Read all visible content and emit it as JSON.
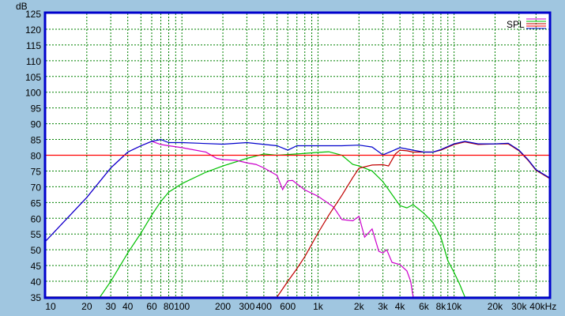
{
  "chart_data": {
    "type": "line",
    "title": "",
    "ylabel": "dB",
    "xunit": "kHz",
    "xscale": "log",
    "xlim": [
      10,
      50000
    ],
    "ylim": [
      35,
      125
    ],
    "grid": true,
    "legend_placement": "top-right",
    "legend_label": "SPL",
    "yticks": [
      35,
      40,
      45,
      50,
      55,
      60,
      65,
      70,
      75,
      80,
      85,
      90,
      95,
      100,
      105,
      110,
      115,
      120,
      125
    ],
    "xticks": [
      {
        "v": 10,
        "label": "10"
      },
      {
        "v": 20,
        "label": "20"
      },
      {
        "v": 30,
        "label": "30"
      },
      {
        "v": 40,
        "label": "40"
      },
      {
        "v": 60,
        "label": "60"
      },
      {
        "v": 80,
        "label": "80"
      },
      {
        "v": 100,
        "label": "100"
      },
      {
        "v": 200,
        "label": "200"
      },
      {
        "v": 300,
        "label": "300"
      },
      {
        "v": 400,
        "label": "400"
      },
      {
        "v": 600,
        "label": "600"
      },
      {
        "v": 1000,
        "label": "1k"
      },
      {
        "v": 2000,
        "label": "2k"
      },
      {
        "v": 3000,
        "label": "3k"
      },
      {
        "v": 4000,
        "label": "4k"
      },
      {
        "v": 6000,
        "label": "6k"
      },
      {
        "v": 8000,
        "label": "8k"
      },
      {
        "v": 10000,
        "label": "10k"
      },
      {
        "v": 20000,
        "label": "20k"
      },
      {
        "v": 30000,
        "label": "30k"
      },
      {
        "v": 40000,
        "label": "40kHz"
      }
    ],
    "reference_line": {
      "y": 80,
      "color": "#ff0000"
    },
    "colors": {
      "background": "#a0c6e0",
      "plot": "#ffffff",
      "border": "#0000cc",
      "grid": "#008000"
    },
    "series": [
      {
        "color": "#00c000",
        "points": [
          [
            10,
            35
          ],
          [
            25,
            35
          ],
          [
            30,
            40
          ],
          [
            40,
            49
          ],
          [
            50,
            55.3
          ],
          [
            60,
            61
          ],
          [
            70,
            65.3
          ],
          [
            80,
            68.3
          ],
          [
            100,
            71
          ],
          [
            150,
            74.6
          ],
          [
            200,
            76.6
          ],
          [
            300,
            79
          ],
          [
            400,
            80.4
          ],
          [
            500,
            80
          ],
          [
            700,
            80.4
          ],
          [
            1000,
            80.9
          ],
          [
            1200,
            81.1
          ],
          [
            1500,
            80
          ],
          [
            1800,
            77.1
          ],
          [
            2000,
            76.6
          ],
          [
            2500,
            75
          ],
          [
            3000,
            71.6
          ],
          [
            4000,
            64
          ],
          [
            4500,
            63.3
          ],
          [
            5000,
            64.3
          ],
          [
            6000,
            61.6
          ],
          [
            7000,
            58.6
          ],
          [
            8000,
            54
          ],
          [
            9000,
            46.5
          ],
          [
            10000,
            42.8
          ],
          [
            11000,
            39
          ],
          [
            12000,
            35
          ],
          [
            50000,
            35
          ]
        ]
      },
      {
        "color": "#cc00cc",
        "points": [
          [
            10,
            52.8
          ],
          [
            20,
            66.6
          ],
          [
            30,
            76
          ],
          [
            40,
            81
          ],
          [
            50,
            83
          ],
          [
            60,
            84.4
          ],
          [
            70,
            83.4
          ],
          [
            80,
            83
          ],
          [
            100,
            82.4
          ],
          [
            150,
            81
          ],
          [
            180,
            79
          ],
          [
            200,
            78.6
          ],
          [
            250,
            78.4
          ],
          [
            300,
            77.6
          ],
          [
            350,
            77.1
          ],
          [
            400,
            76
          ],
          [
            500,
            73.6
          ],
          [
            550,
            69.1
          ],
          [
            600,
            71.9
          ],
          [
            650,
            72
          ],
          [
            800,
            69
          ],
          [
            1000,
            67
          ],
          [
            1300,
            63.6
          ],
          [
            1500,
            59.6
          ],
          [
            1800,
            59.2
          ],
          [
            2000,
            60.6
          ],
          [
            2200,
            54
          ],
          [
            2500,
            56.6
          ],
          [
            2800,
            49.5
          ],
          [
            3000,
            49
          ],
          [
            3200,
            50
          ],
          [
            3500,
            46
          ],
          [
            4000,
            45.3
          ],
          [
            4500,
            43.3
          ],
          [
            4800,
            40
          ],
          [
            5000,
            35
          ],
          [
            10500,
            35
          ]
        ]
      },
      {
        "color": "#c00000",
        "points": [
          [
            10,
            35
          ],
          [
            500,
            35
          ],
          [
            600,
            40
          ],
          [
            700,
            44
          ],
          [
            800,
            47.8
          ],
          [
            1000,
            55.3
          ],
          [
            1200,
            61
          ],
          [
            1500,
            67.3
          ],
          [
            1800,
            72.9
          ],
          [
            2000,
            75.9
          ],
          [
            2500,
            76.9
          ],
          [
            3000,
            77
          ],
          [
            3300,
            76.6
          ],
          [
            3700,
            80.4
          ],
          [
            4000,
            81.6
          ],
          [
            4500,
            81.4
          ],
          [
            5000,
            81
          ],
          [
            6000,
            81
          ],
          [
            7000,
            81
          ],
          [
            8000,
            81.6
          ],
          [
            10000,
            83.4
          ],
          [
            12000,
            84.2
          ],
          [
            15000,
            83.4
          ],
          [
            20000,
            83.6
          ],
          [
            25000,
            83.6
          ],
          [
            30000,
            81.4
          ],
          [
            35000,
            78.4
          ],
          [
            40000,
            75.2
          ],
          [
            50000,
            72.7
          ]
        ]
      },
      {
        "color": "#0000cc",
        "points": [
          [
            10,
            52.8
          ],
          [
            20,
            66.6
          ],
          [
            30,
            76
          ],
          [
            40,
            81
          ],
          [
            50,
            83
          ],
          [
            60,
            84.4
          ],
          [
            70,
            85
          ],
          [
            80,
            84
          ],
          [
            100,
            84
          ],
          [
            200,
            83.5
          ],
          [
            300,
            84
          ],
          [
            500,
            83
          ],
          [
            600,
            81.6
          ],
          [
            700,
            83
          ],
          [
            1000,
            83
          ],
          [
            1500,
            83
          ],
          [
            2000,
            83.2
          ],
          [
            2500,
            82.6
          ],
          [
            3000,
            80.1
          ],
          [
            4000,
            82.4
          ],
          [
            5000,
            81.6
          ],
          [
            6000,
            81
          ],
          [
            7000,
            81
          ],
          [
            8000,
            81.8
          ],
          [
            10000,
            83.6
          ],
          [
            12000,
            84.4
          ],
          [
            15000,
            83.6
          ],
          [
            20000,
            83.6
          ],
          [
            25000,
            83.8
          ],
          [
            30000,
            81.6
          ],
          [
            35000,
            78.6
          ],
          [
            40000,
            75.4
          ],
          [
            50000,
            72.9
          ]
        ]
      }
    ]
  }
}
